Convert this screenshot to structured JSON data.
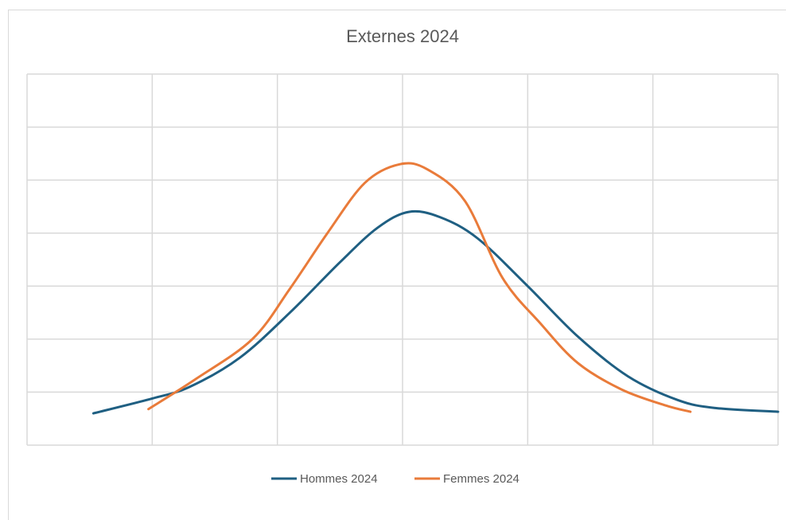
{
  "chart_data": {
    "type": "line",
    "title": "Externes 2024",
    "xlabel": "",
    "ylabel": "",
    "x_range": [
      0,
      6
    ],
    "y_range": [
      0,
      7
    ],
    "grid": true,
    "legend_position": "bottom",
    "series": [
      {
        "name": "Hommes 2024",
        "color": "#1f5f82",
        "points": [
          [
            0.53,
            0.6
          ],
          [
            1.0,
            0.88
          ],
          [
            1.3,
            1.1
          ],
          [
            1.7,
            1.65
          ],
          [
            2.1,
            2.5
          ],
          [
            2.5,
            3.45
          ],
          [
            2.8,
            4.1
          ],
          [
            3.05,
            4.4
          ],
          [
            3.3,
            4.3
          ],
          [
            3.6,
            3.9
          ],
          [
            4.0,
            3.0
          ],
          [
            4.4,
            2.05
          ],
          [
            4.8,
            1.3
          ],
          [
            5.2,
            0.85
          ],
          [
            5.5,
            0.7
          ],
          [
            6.0,
            0.63
          ]
        ]
      },
      {
        "name": "Femmes 2024",
        "color": "#e97b3a",
        "points": [
          [
            0.97,
            0.68
          ],
          [
            1.35,
            1.25
          ],
          [
            1.8,
            2.0
          ],
          [
            2.1,
            2.95
          ],
          [
            2.4,
            4.0
          ],
          [
            2.7,
            4.95
          ],
          [
            2.98,
            5.3
          ],
          [
            3.2,
            5.2
          ],
          [
            3.5,
            4.6
          ],
          [
            3.8,
            3.15
          ],
          [
            4.1,
            2.3
          ],
          [
            4.4,
            1.55
          ],
          [
            4.75,
            1.05
          ],
          [
            5.1,
            0.75
          ],
          [
            5.3,
            0.63
          ]
        ]
      }
    ]
  }
}
